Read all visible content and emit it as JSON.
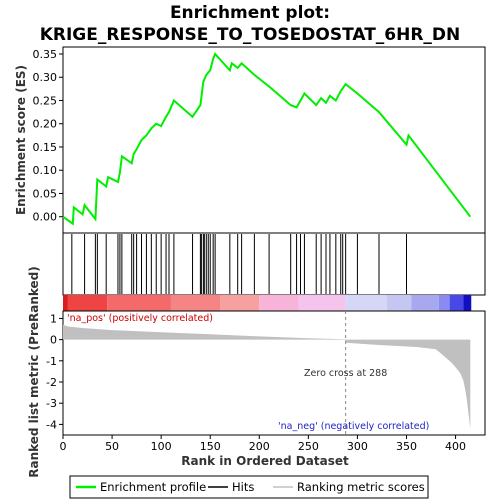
{
  "chart_data": {
    "type": "line",
    "title_lines": [
      "Enrichment plot:",
      "KRIGE_RESPONSE_TO_TOSEDOSTAT_6HR_DN"
    ],
    "xlabel": "Rank in Ordered Dataset",
    "top_panel": {
      "ylabel": "Enrichment score (ES)",
      "ylim": [
        -0.035,
        0.365
      ],
      "yticks": [
        "0.00",
        "0.05",
        "0.10",
        "0.15",
        "0.20",
        "0.25",
        "0.30",
        "0.35"
      ],
      "ytick_values": [
        0,
        0.05,
        0.1,
        0.15,
        0.2,
        0.25,
        0.3,
        0.35
      ],
      "series_name": "Enrichment profile",
      "color": "#00ee00",
      "points": [
        [
          0,
          0.0
        ],
        [
          10,
          -0.015
        ],
        [
          11,
          0.02
        ],
        [
          20,
          0.005
        ],
        [
          22,
          0.025
        ],
        [
          33,
          -0.005
        ],
        [
          35,
          0.08
        ],
        [
          44,
          0.065
        ],
        [
          46,
          0.085
        ],
        [
          56,
          0.075
        ],
        [
          58,
          0.095
        ],
        [
          60,
          0.13
        ],
        [
          70,
          0.115
        ],
        [
          72,
          0.135
        ],
        [
          75,
          0.145
        ],
        [
          80,
          0.165
        ],
        [
          85,
          0.175
        ],
        [
          90,
          0.19
        ],
        [
          95,
          0.2
        ],
        [
          100,
          0.195
        ],
        [
          105,
          0.215
        ],
        [
          108,
          0.225
        ],
        [
          113,
          0.25
        ],
        [
          132,
          0.215
        ],
        [
          140,
          0.24
        ],
        [
          143,
          0.29
        ],
        [
          146,
          0.305
        ],
        [
          148,
          0.31
        ],
        [
          150,
          0.315
        ],
        [
          153,
          0.34
        ],
        [
          155,
          0.35
        ],
        [
          170,
          0.315
        ],
        [
          172,
          0.33
        ],
        [
          178,
          0.32
        ],
        [
          182,
          0.33
        ],
        [
          195,
          0.305
        ],
        [
          210,
          0.28
        ],
        [
          232,
          0.24
        ],
        [
          238,
          0.235
        ],
        [
          242,
          0.25
        ],
        [
          246,
          0.265
        ],
        [
          258,
          0.24
        ],
        [
          263,
          0.255
        ],
        [
          268,
          0.245
        ],
        [
          272,
          0.26
        ],
        [
          278,
          0.25
        ],
        [
          283,
          0.27
        ],
        [
          288,
          0.285
        ],
        [
          300,
          0.265
        ],
        [
          322,
          0.225
        ],
        [
          350,
          0.155
        ],
        [
          352,
          0.175
        ],
        [
          415,
          0.0
        ]
      ]
    },
    "hits": [
      9,
      22,
      33,
      35,
      44,
      56,
      58,
      60,
      70,
      72,
      75,
      80,
      85,
      90,
      95,
      100,
      105,
      108,
      113,
      132,
      140,
      141,
      143,
      144,
      146,
      148,
      150,
      153,
      155,
      170,
      178,
      182,
      195,
      210,
      232,
      238,
      242,
      246,
      258,
      263,
      268,
      272,
      278,
      283,
      285,
      288,
      300,
      322,
      350
    ],
    "ranking_panel": {
      "ylabel": "Ranked list metric (PreRanked)",
      "ylim": [
        -4.5,
        1.35
      ],
      "yticks": [
        "1",
        "0",
        "-1",
        "-2",
        "-3",
        "-4"
      ],
      "ytick_values": [
        1,
        0,
        -1,
        -2,
        -3,
        -4
      ],
      "series_name": "Ranking metric scores",
      "color": "#c0c0c0",
      "points": [
        [
          0,
          0.7
        ],
        [
          5,
          0.62
        ],
        [
          20,
          0.55
        ],
        [
          50,
          0.45
        ],
        [
          100,
          0.35
        ],
        [
          150,
          0.25
        ],
        [
          200,
          0.15
        ],
        [
          250,
          0.06
        ],
        [
          287,
          0.02
        ],
        [
          288,
          -0.15
        ],
        [
          320,
          -0.25
        ],
        [
          360,
          -0.35
        ],
        [
          380,
          -0.45
        ],
        [
          385,
          -0.65
        ],
        [
          390,
          -0.85
        ],
        [
          395,
          -1.05
        ],
        [
          400,
          -1.3
        ],
        [
          405,
          -1.6
        ],
        [
          408,
          -1.95
        ],
        [
          410,
          -2.4
        ],
        [
          412,
          -3.0
        ],
        [
          414,
          -3.8
        ],
        [
          415,
          -4.2
        ]
      ],
      "zero_cross_label": "Zero cross at 288",
      "zero_cross_rank": 288,
      "pos_label": "'na_pos' (positively correlated)",
      "neg_label": "'na_neg' (negatively correlated)"
    },
    "xlim": [
      0,
      430
    ],
    "xticks": [
      "0",
      "50",
      "100",
      "150",
      "200",
      "250",
      "300",
      "350",
      "400"
    ],
    "xtick_values": [
      0,
      50,
      100,
      150,
      200,
      250,
      300,
      350,
      400
    ],
    "legend": [
      "Enrichment profile",
      "Hits",
      "Ranking metric scores"
    ],
    "colorbar_segments": [
      {
        "from": 0,
        "to": 5,
        "color": "#d81e1e"
      },
      {
        "from": 5,
        "to": 45,
        "color": "#ef4444"
      },
      {
        "from": 45,
        "to": 110,
        "color": "#f46a6a"
      },
      {
        "from": 110,
        "to": 160,
        "color": "#f58585"
      },
      {
        "from": 160,
        "to": 200,
        "color": "#f7a0a0"
      },
      {
        "from": 200,
        "to": 240,
        "color": "#f8b4d8"
      },
      {
        "from": 240,
        "to": 288,
        "color": "#f4c4ec"
      },
      {
        "from": 288,
        "to": 330,
        "color": "#d6d6f6"
      },
      {
        "from": 330,
        "to": 355,
        "color": "#c6c6f2"
      },
      {
        "from": 355,
        "to": 383,
        "color": "#a8a8ee"
      },
      {
        "from": 383,
        "to": 394,
        "color": "#8a8af0"
      },
      {
        "from": 394,
        "to": 408,
        "color": "#4848e6"
      },
      {
        "from": 408,
        "to": 416,
        "color": "#1010c0"
      }
    ]
  }
}
